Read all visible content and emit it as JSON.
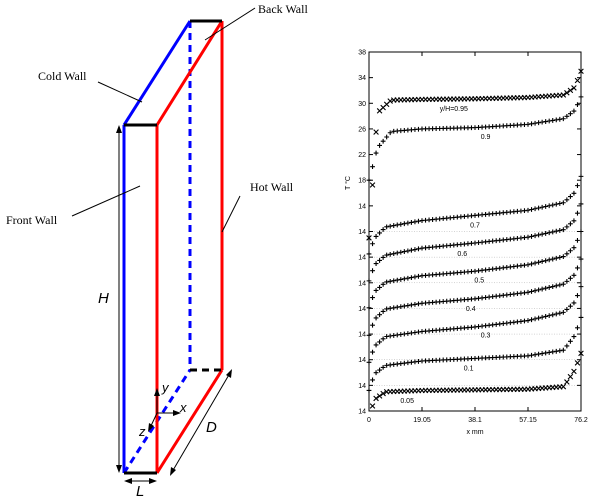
{
  "diagram": {
    "labels": {
      "back_wall": "Back Wall",
      "cold_wall": "Cold Wall",
      "hot_wall": "Hot Wall",
      "front_wall": "Front Wall",
      "height": "H",
      "width": "L",
      "depth": "D",
      "axis_x": "x",
      "axis_y": "y",
      "axis_z": "z"
    },
    "colors": {
      "cold": "#0000ff",
      "hot": "#ff0000",
      "edge": "#000000"
    }
  },
  "chart_data": {
    "type": "line",
    "xlabel": "x mm",
    "ylabel": "T °C",
    "xlim": [
      0,
      76.2
    ],
    "x_ticks": [
      "0",
      "19.05",
      "38.1",
      "57.15",
      "76.2"
    ],
    "y_ticks": [
      "14",
      "14",
      "14",
      "14",
      "14",
      "14",
      "14",
      "14",
      "14",
      "18",
      "22",
      "26",
      "30",
      "34",
      "38"
    ],
    "series": [
      {
        "name": "y/H=0.95",
        "offset": 0.0,
        "x": [
          0,
          3,
          8,
          19,
          38,
          57,
          70,
          74,
          76.2
        ],
        "y": [
          9,
          28.5,
          30.5,
          30.6,
          30.7,
          30.9,
          31.3,
          32.5,
          35
        ]
      },
      {
        "name": "0.9",
        "offset": 0.0,
        "x": [
          0,
          3,
          8,
          19,
          38,
          57,
          70,
          74,
          76.2
        ],
        "y": [
          18,
          23,
          25.6,
          26,
          26.2,
          26.7,
          27.6,
          28.9,
          31
        ]
      },
      {
        "name": "0.7",
        "offset": 4.0,
        "x": [
          0,
          2,
          6,
          19,
          38,
          57,
          70,
          74,
          76.2
        ],
        "y": [
          10.5,
          13,
          14.7,
          15.7,
          16.5,
          17.3,
          18.5,
          20.1,
          22.6
        ]
      },
      {
        "name": "0.6",
        "offset": 8.0,
        "x": [
          0,
          2,
          6,
          19,
          38,
          57,
          70,
          74,
          76.2
        ],
        "y": [
          10.3,
          12.8,
          14.3,
          15.4,
          16.2,
          17.1,
          18.3,
          19.8,
          22.3
        ]
      },
      {
        "name": "0.5",
        "offset": 12.0,
        "x": [
          0,
          2,
          6,
          19,
          38,
          57,
          70,
          74,
          76.2
        ],
        "y": [
          10.1,
          12.6,
          14.1,
          15.1,
          15.8,
          16.8,
          18.1,
          19.6,
          22.0
        ]
      },
      {
        "name": "0.4",
        "offset": 16.0,
        "x": [
          0,
          2,
          6,
          19,
          38,
          57,
          70,
          74,
          76.2
        ],
        "y": [
          9.8,
          12.3,
          13.9,
          14.8,
          15.5,
          16.5,
          17.8,
          19.3,
          21.7
        ]
      },
      {
        "name": "0.3",
        "offset": 20.0,
        "x": [
          0,
          2,
          6,
          19,
          38,
          57,
          70,
          74,
          76.2
        ],
        "y": [
          9.6,
          12.1,
          13.6,
          14.4,
          15.1,
          16.1,
          17.4,
          19.0,
          21.4
        ]
      },
      {
        "name": "0.1",
        "offset": 24.0,
        "x": [
          0,
          2,
          6,
          19,
          38,
          57,
          70,
          74,
          76.2
        ],
        "y": [
          9.2,
          11.8,
          13.1,
          13.8,
          14.2,
          14.6,
          15.5,
          17.8,
          20.6
        ]
      },
      {
        "name": "0.05",
        "offset": 28.0,
        "x": [
          0,
          2,
          6,
          19,
          38,
          57,
          70,
          74,
          76.2
        ],
        "y": [
          9.0,
          11.8,
          13.0,
          13.2,
          13.3,
          13.4,
          13.8,
          16.4,
          19.0
        ]
      }
    ]
  }
}
